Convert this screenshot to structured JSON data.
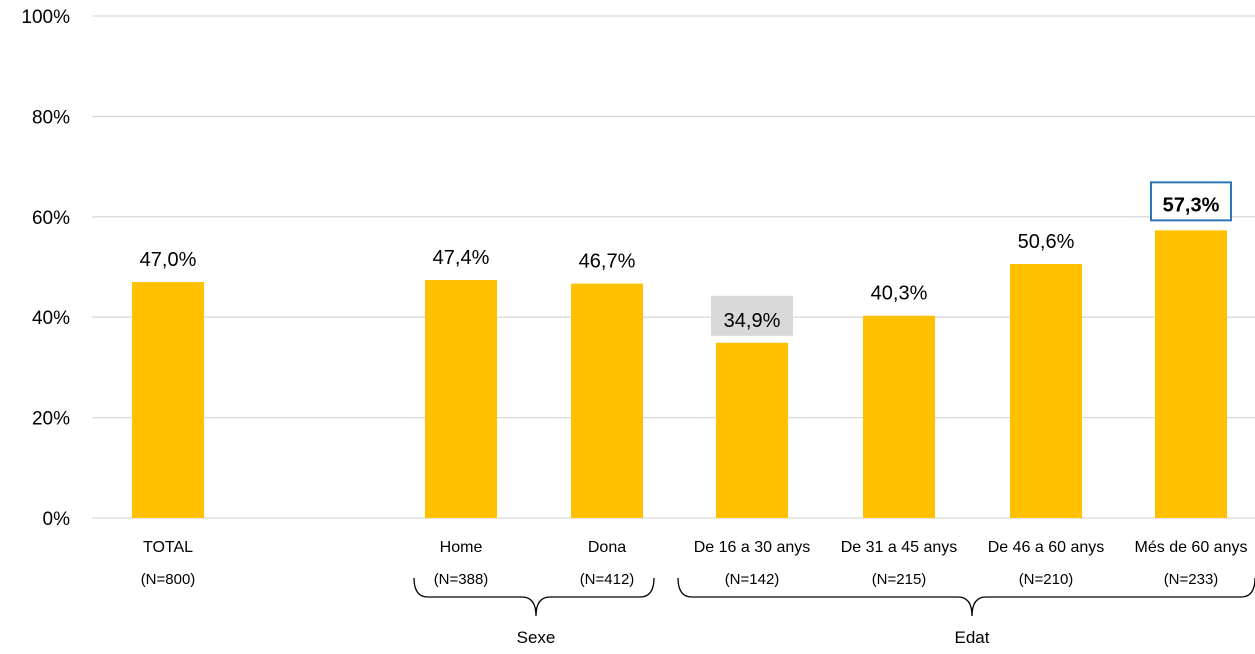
{
  "chart_data": {
    "type": "bar",
    "title": "",
    "xlabel": "",
    "ylabel": "",
    "ylim": [
      0,
      100
    ],
    "y_ticks": [
      "0%",
      "20%",
      "40%",
      "60%",
      "80%",
      "100%"
    ],
    "grid": true,
    "categories": [
      "TOTAL",
      "Home",
      "Dona",
      "De 16 a 30 anys",
      "De 31 a 45 anys",
      "De 46 a 60 anys",
      "Més de 60 anys"
    ],
    "sample_sizes": [
      "(N=800)",
      "(N=388)",
      "(N=412)",
      "(N=142)",
      "(N=215)",
      "(N=210)",
      "(N=233)"
    ],
    "values": [
      47.0,
      47.4,
      46.7,
      34.9,
      40.3,
      50.6,
      57.3
    ],
    "value_labels": [
      "47,0%",
      "47,4%",
      "46,7%",
      "34,9%",
      "40,3%",
      "50,6%",
      "57,3%"
    ],
    "groups": [
      {
        "label": "Sexe",
        "members": [
          "Home",
          "Dona"
        ]
      },
      {
        "label": "Edat",
        "members": [
          "De 16 a 30 anys",
          "De 31 a 45 anys",
          "De 46 a 60 anys",
          "Més de 60 anys"
        ]
      }
    ],
    "highlight_min": "De 16 a 30 anys",
    "highlight_max": "Més de 60 anys",
    "colors": {
      "bar": "#FFC000",
      "grid": "#D9D9D9",
      "min_label_bg": "#D9D9D9",
      "max_label_border": "#2E75B6"
    }
  }
}
